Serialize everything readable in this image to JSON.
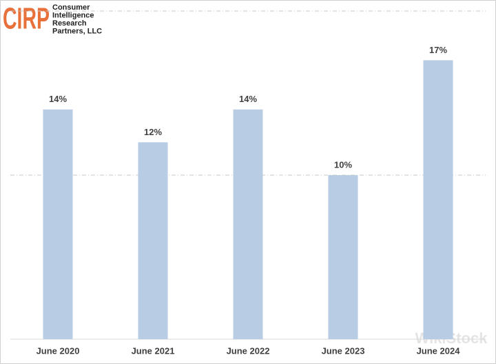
{
  "chart_data": {
    "type": "bar",
    "logo": {
      "mark": "CIRP",
      "lines": [
        "Consumer",
        "Intelligence",
        "Research",
        "Partners, LLC"
      ]
    },
    "watermark": "WikiStock",
    "categories": [
      "June 2020",
      "June 2021",
      "June 2022",
      "June 2023",
      "June 2024"
    ],
    "values": [
      14,
      12,
      14,
      10,
      17
    ],
    "value_labels": [
      "14%",
      "12%",
      "14%",
      "10%",
      "17%"
    ],
    "color": "#b8cce4",
    "ylim": [
      0,
      20
    ],
    "yticks": [
      10,
      20
    ],
    "tick_labels": false,
    "grid": true
  }
}
